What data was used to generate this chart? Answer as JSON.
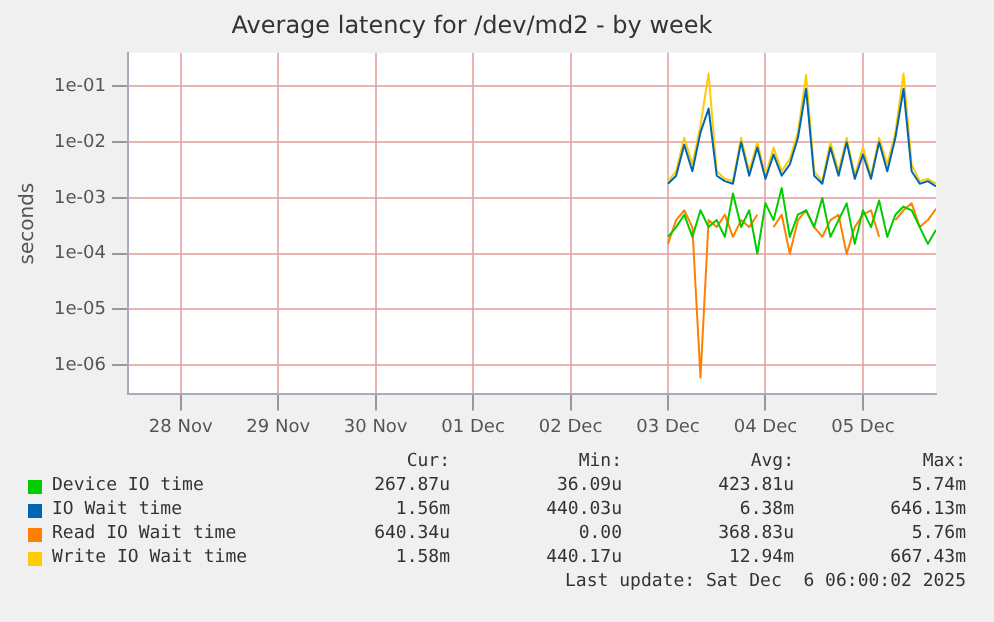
{
  "chart_data": {
    "type": "line",
    "title": "Average latency for /dev/md2 - by week",
    "ylabel": "seconds",
    "x": [
      "2025-12-03T12:00",
      "2025-12-03T14:00",
      "2025-12-03T16:00",
      "2025-12-03T18:00",
      "2025-12-03T20:00",
      "2025-12-03T22:00",
      "2025-12-04T00:00",
      "2025-12-04T02:00",
      "2025-12-04T04:00",
      "2025-12-04T06:00",
      "2025-12-04T08:00",
      "2025-12-04T10:00",
      "2025-12-04T12:00",
      "2025-12-04T14:00",
      "2025-12-04T16:00",
      "2025-12-04T18:00",
      "2025-12-04T20:00",
      "2025-12-04T22:00",
      "2025-12-05T00:00",
      "2025-12-05T02:00",
      "2025-12-05T04:00",
      "2025-12-05T06:00",
      "2025-12-05T08:00",
      "2025-12-05T10:00",
      "2025-12-05T12:00",
      "2025-12-05T14:00",
      "2025-12-05T16:00",
      "2025-12-05T18:00",
      "2025-12-05T20:00",
      "2025-12-05T22:00",
      "2025-12-06T00:00",
      "2025-12-06T02:00",
      "2025-12-06T04:00",
      "2025-12-06T06:00"
    ],
    "series": [
      {
        "name": "Device IO time",
        "color": "#00cc00",
        "values": [
          0.0002,
          0.0003,
          0.0005,
          0.0002,
          0.0006,
          0.0003,
          0.0004,
          0.0002,
          0.0012,
          0.0003,
          0.0006,
          0.0001,
          0.0008,
          0.0004,
          0.0015,
          0.0002,
          0.0005,
          0.0006,
          0.0003,
          0.001,
          0.0002,
          0.0004,
          0.0008,
          0.00015,
          0.0006,
          0.0003,
          0.0009,
          0.0002,
          0.0005,
          0.0007,
          0.0006,
          0.0003,
          0.00015,
          0.00027
        ]
      },
      {
        "name": "IO Wait time",
        "color": "#0066b3",
        "values": [
          0.0018,
          0.0025,
          0.009,
          0.003,
          0.015,
          0.04,
          0.0025,
          0.002,
          0.0018,
          0.01,
          0.0025,
          0.008,
          0.0022,
          0.006,
          0.0025,
          0.004,
          0.012,
          0.09,
          0.0025,
          0.0018,
          0.008,
          0.0025,
          0.01,
          0.0022,
          0.006,
          0.0022,
          0.01,
          0.003,
          0.012,
          0.09,
          0.003,
          0.0018,
          0.002,
          0.0016
        ]
      },
      {
        "name": "Read IO Wait time",
        "color": "#ff8000",
        "values": [
          0.00015,
          0.0004,
          0.0006,
          0.0003,
          6e-07,
          0.0004,
          0.0003,
          0.0005,
          0.0002,
          0.0004,
          0.0003,
          0.0005,
          null,
          0.0003,
          0.0005,
          0.0001,
          0.0004,
          0.0006,
          0.0003,
          0.0002,
          0.0004,
          0.0005,
          0.0001,
          0.0003,
          0.0005,
          0.0006,
          0.0002,
          null,
          0.0004,
          0.0006,
          0.0008,
          0.0003,
          0.0004,
          0.00064
        ]
      },
      {
        "name": "Write IO Wait time",
        "color": "#ffcc00",
        "values": [
          0.002,
          0.003,
          0.012,
          0.004,
          0.02,
          0.17,
          0.003,
          0.0022,
          0.002,
          0.012,
          0.003,
          0.01,
          0.0025,
          0.008,
          0.003,
          0.005,
          0.015,
          0.16,
          0.003,
          0.002,
          0.01,
          0.003,
          0.012,
          0.0025,
          0.008,
          0.0025,
          0.012,
          0.004,
          0.015,
          0.17,
          0.004,
          0.002,
          0.0022,
          0.0018
        ]
      }
    ],
    "log": "y",
    "ylim": [
      3e-07,
      0.4
    ],
    "yticks": [
      {
        "value": 1e-06,
        "label": "1e-06"
      },
      {
        "value": 1e-05,
        "label": "1e-05"
      },
      {
        "value": 0.0001,
        "label": "1e-04"
      },
      {
        "value": 0.001,
        "label": "1e-03"
      },
      {
        "value": 0.01,
        "label": "1e-02"
      },
      {
        "value": 0.1,
        "label": "1e-01"
      }
    ],
    "xlim": [
      "2025-11-27T23:00",
      "2025-12-06T06:00"
    ],
    "xticks": [
      {
        "value": "2025-11-28T12:00",
        "label": "28 Nov"
      },
      {
        "value": "2025-11-29T12:00",
        "label": "29 Nov"
      },
      {
        "value": "2025-11-30T12:00",
        "label": "30 Nov"
      },
      {
        "value": "2025-12-01T12:00",
        "label": "01 Dec"
      },
      {
        "value": "2025-12-02T12:00",
        "label": "02 Dec"
      },
      {
        "value": "2025-12-03T12:00",
        "label": "03 Dec"
      },
      {
        "value": "2025-12-04T12:00",
        "label": "04 Dec"
      },
      {
        "value": "2025-12-05T12:00",
        "label": "05 Dec"
      }
    ],
    "grid": true,
    "legend": "bottom",
    "marker": "none",
    "line_style": "solid",
    "annotations": [
      "Cur:",
      "Min:",
      "Avg:",
      "Max:",
      "267.87u",
      "36.09u",
      "423.81u",
      "5.74m",
      "1.56m",
      "440.03u",
      "6.38m",
      "646.13m",
      "640.34u",
      "0.00",
      "368.83u",
      "5.76m",
      "1.58m",
      "440.17u",
      "12.94m",
      "667.43m",
      "Last update: Sat Dec  6 06:00:02 2025"
    ]
  }
}
